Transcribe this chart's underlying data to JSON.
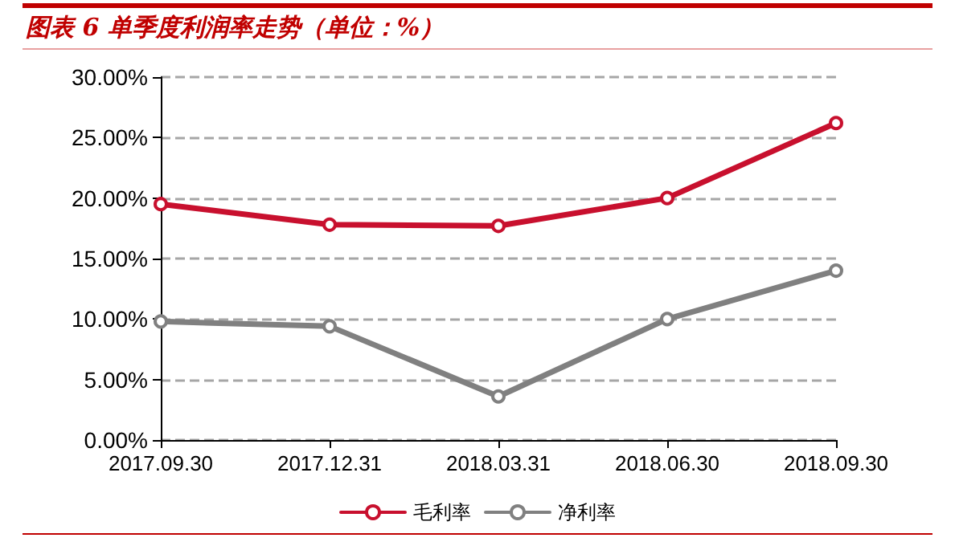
{
  "chart_data": {
    "type": "line",
    "title": "图表 6  单季度利润率走势（单位：%）",
    "categories": [
      "2017.09.30",
      "2017.12.31",
      "2018.03.31",
      "2018.06.30",
      "2018.09.30"
    ],
    "series": [
      {
        "name": "毛利率",
        "color": "#c8102e",
        "values": [
          19.5,
          17.8,
          17.7,
          20.0,
          26.2
        ]
      },
      {
        "name": "净利率",
        "color": "#808080",
        "values": [
          9.8,
          9.4,
          3.6,
          10.0,
          14.0
        ]
      }
    ],
    "ylim": [
      0,
      30
    ],
    "yticks": [
      {
        "value": 0,
        "label": "0.00%"
      },
      {
        "value": 5,
        "label": "5.00%"
      },
      {
        "value": 10,
        "label": "10.00%"
      },
      {
        "value": 15,
        "label": "15.00%"
      },
      {
        "value": 20,
        "label": "20.00%"
      },
      {
        "value": 25,
        "label": "25.00%"
      },
      {
        "value": 30,
        "label": "30.00%"
      }
    ],
    "grid": "y",
    "legend": "bottom",
    "marker": "circle",
    "line_style": "solid"
  }
}
